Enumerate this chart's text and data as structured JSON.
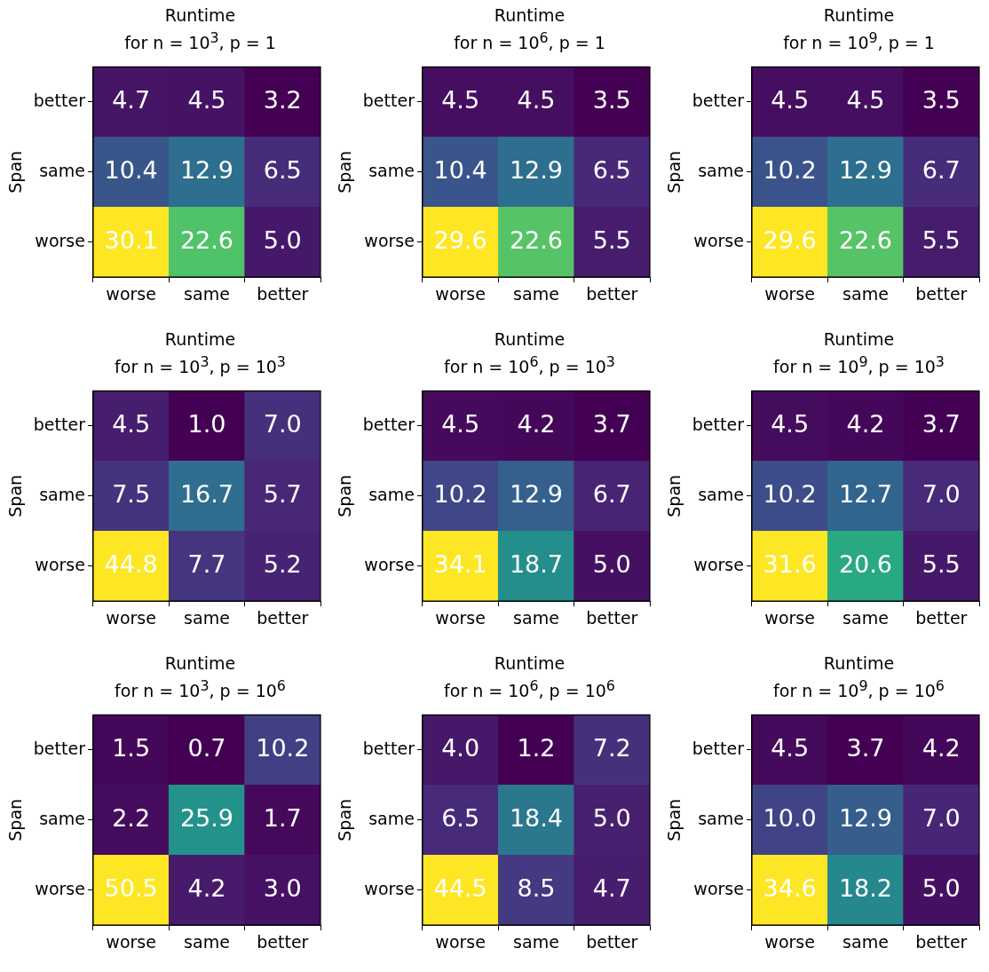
{
  "chart_data": [
    {
      "type": "heatmap",
      "title": "Runtime",
      "subtitle": "for n = 10$^{3}$, p = 1",
      "ylabel": "Span",
      "categories": [
        "worse",
        "same",
        "better"
      ],
      "y_categories": [
        "better",
        "same",
        "worse"
      ],
      "cells": [
        [
          4.7,
          4.5,
          3.2
        ],
        [
          10.4,
          12.9,
          6.5
        ],
        [
          30.1,
          22.6,
          5.0
        ]
      ],
      "cell_labels": [
        [
          "4.7",
          "4.5",
          "3.2"
        ],
        [
          "10.4",
          "12.9",
          "6.5"
        ],
        [
          "30.1",
          "22.6",
          "5.0"
        ]
      ]
    },
    {
      "type": "heatmap",
      "title": "Runtime",
      "subtitle": "for n = 10$^{6}$, p = 1",
      "ylabel": "Span",
      "categories": [
        "worse",
        "same",
        "better"
      ],
      "y_categories": [
        "better",
        "same",
        "worse"
      ],
      "cells": [
        [
          4.5,
          4.5,
          3.5
        ],
        [
          10.4,
          12.9,
          6.5
        ],
        [
          29.6,
          22.6,
          5.5
        ]
      ],
      "cell_labels": [
        [
          "4.5",
          "4.5",
          "3.5"
        ],
        [
          "10.4",
          "12.9",
          "6.5"
        ],
        [
          "29.6",
          "22.6",
          "5.5"
        ]
      ]
    },
    {
      "type": "heatmap",
      "title": "Runtime",
      "subtitle": "for n = 10$^{9}$, p = 1",
      "ylabel": "Span",
      "categories": [
        "worse",
        "same",
        "better"
      ],
      "y_categories": [
        "better",
        "same",
        "worse"
      ],
      "cells": [
        [
          4.5,
          4.5,
          3.5
        ],
        [
          10.2,
          12.9,
          6.7
        ],
        [
          29.6,
          22.6,
          5.5
        ]
      ],
      "cell_labels": [
        [
          "4.5",
          "4.5",
          "3.5"
        ],
        [
          "10.2",
          "12.9",
          "6.7"
        ],
        [
          "29.6",
          "22.6",
          "5.5"
        ]
      ]
    },
    {
      "type": "heatmap",
      "title": "Runtime",
      "subtitle": "for n = 10$^{3}$, p = 10$^{3}$",
      "ylabel": "Span",
      "categories": [
        "worse",
        "same",
        "better"
      ],
      "y_categories": [
        "better",
        "same",
        "worse"
      ],
      "cells": [
        [
          4.5,
          1.0,
          7.0
        ],
        [
          7.5,
          16.7,
          5.7
        ],
        [
          44.8,
          7.7,
          5.2
        ]
      ],
      "cell_labels": [
        [
          "4.5",
          "1.0",
          "7.0"
        ],
        [
          "7.5",
          "16.7",
          "5.7"
        ],
        [
          "44.8",
          "7.7",
          "5.2"
        ]
      ]
    },
    {
      "type": "heatmap",
      "title": "Runtime",
      "subtitle": "for n = 10$^{6}$, p = 10$^{3}$",
      "ylabel": "Span",
      "categories": [
        "worse",
        "same",
        "better"
      ],
      "y_categories": [
        "better",
        "same",
        "worse"
      ],
      "cells": [
        [
          4.5,
          4.2,
          3.7
        ],
        [
          10.2,
          12.9,
          6.7
        ],
        [
          34.1,
          18.7,
          5.0
        ]
      ],
      "cell_labels": [
        [
          "4.5",
          "4.2",
          "3.7"
        ],
        [
          "10.2",
          "12.9",
          "6.7"
        ],
        [
          "34.1",
          "18.7",
          "5.0"
        ]
      ]
    },
    {
      "type": "heatmap",
      "title": "Runtime",
      "subtitle": "for n = 10$^{9}$, p = 10$^{3}$",
      "ylabel": "Span",
      "categories": [
        "worse",
        "same",
        "better"
      ],
      "y_categories": [
        "better",
        "same",
        "worse"
      ],
      "cells": [
        [
          4.5,
          4.2,
          3.7
        ],
        [
          10.2,
          12.7,
          7.0
        ],
        [
          31.6,
          20.6,
          5.5
        ]
      ],
      "cell_labels": [
        [
          "4.5",
          "4.2",
          "3.7"
        ],
        [
          "10.2",
          "12.7",
          "7.0"
        ],
        [
          "31.6",
          "20.6",
          "5.5"
        ]
      ]
    },
    {
      "type": "heatmap",
      "title": "Runtime",
      "subtitle": "for n = 10$^{3}$, p = 10$^{6}$",
      "ylabel": "Span",
      "categories": [
        "worse",
        "same",
        "better"
      ],
      "y_categories": [
        "better",
        "same",
        "worse"
      ],
      "cells": [
        [
          1.5,
          0.7,
          10.2
        ],
        [
          2.2,
          25.9,
          1.7
        ],
        [
          50.5,
          4.2,
          3.0
        ]
      ],
      "cell_labels": [
        [
          "1.5",
          "0.7",
          "10.2"
        ],
        [
          "2.2",
          "25.9",
          "1.7"
        ],
        [
          "50.5",
          "4.2",
          "3.0"
        ]
      ]
    },
    {
      "type": "heatmap",
      "title": "Runtime",
      "subtitle": "for n = 10$^{6}$, p = 10$^{6}$",
      "ylabel": "Span",
      "categories": [
        "worse",
        "same",
        "better"
      ],
      "y_categories": [
        "better",
        "same",
        "worse"
      ],
      "cells": [
        [
          4.0,
          1.2,
          7.2
        ],
        [
          6.5,
          18.4,
          5.0
        ],
        [
          44.5,
          8.5,
          4.7
        ]
      ],
      "cell_labels": [
        [
          "4.0",
          "1.2",
          "7.2"
        ],
        [
          "6.5",
          "18.4",
          "5.0"
        ],
        [
          "44.5",
          "8.5",
          "4.7"
        ]
      ]
    },
    {
      "type": "heatmap",
      "title": "Runtime",
      "subtitle": "for n = 10$^{9}$, p = 10$^{6}$",
      "ylabel": "Span",
      "categories": [
        "worse",
        "same",
        "better"
      ],
      "y_categories": [
        "better",
        "same",
        "worse"
      ],
      "cells": [
        [
          4.5,
          3.7,
          4.2
        ],
        [
          10.0,
          12.9,
          7.0
        ],
        [
          34.6,
          18.2,
          5.0
        ]
      ],
      "cell_labels": [
        [
          "4.5",
          "3.7",
          "4.2"
        ],
        [
          "10.0",
          "12.9",
          "7.0"
        ],
        [
          "34.6",
          "18.2",
          "5.0"
        ]
      ]
    }
  ]
}
